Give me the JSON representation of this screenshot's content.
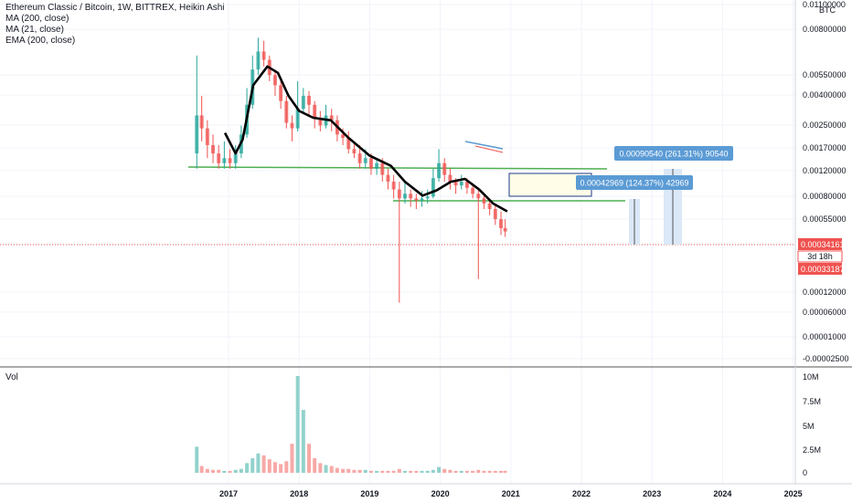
{
  "legend": {
    "title": "Ethereum Classic / Bitcoin, 1W, BITTREX, Heikin Ashi",
    "indicators": [
      "MA (200, close)",
      "MA (21, close)",
      "EMA (200, close)"
    ]
  },
  "volume_label": "Vol",
  "currency": "BTC",
  "current_price": "0.00034161",
  "countdown": "3d 18h",
  "secondary_price": "0.00033187",
  "measures": [
    {
      "text": "0.00090540 (261.31%) 90540"
    },
    {
      "text": "0.00042969 (124.37%) 42969"
    }
  ],
  "colors": {
    "up": "#26a69a",
    "down": "#ef5350",
    "ma": "#000000",
    "trendline": "#4caf50",
    "measure": "#5b9bd5",
    "price_tag": "#ef5350"
  },
  "chart_data": {
    "type": "candlestick",
    "y_scale": "log",
    "price_ticks": [
      "0.01100000",
      "0.00800000",
      "0.00550000",
      "0.00400000",
      "0.00250000",
      "0.00170000",
      "0.00120000",
      "0.00080000",
      "0.00055000",
      "0.00034161",
      "0.00012000",
      "0.00006000",
      "0.00001000",
      "-0.00002500"
    ],
    "x_ticks": [
      "2017",
      "2018",
      "2019",
      "2020",
      "2021",
      "2022",
      "2023",
      "2024",
      "2025"
    ],
    "volume_ticks": [
      "10M",
      "7.5M",
      "5M",
      "2.5M",
      "0"
    ],
    "series_ma": [
      [
        2016.95,
        0.00185
      ],
      [
        2017.1,
        0.0013
      ],
      [
        2017.2,
        0.00165
      ],
      [
        2017.35,
        0.0042
      ],
      [
        2017.55,
        0.0058
      ],
      [
        2017.7,
        0.0052
      ],
      [
        2017.85,
        0.0035
      ],
      [
        2018.0,
        0.0027
      ],
      [
        2018.2,
        0.0024
      ],
      [
        2018.45,
        0.0023
      ],
      [
        2018.7,
        0.0017
      ],
      [
        2019.0,
        0.00125
      ],
      [
        2019.3,
        0.00105
      ],
      [
        2019.5,
        0.0008
      ],
      [
        2019.75,
        0.00063
      ],
      [
        2019.95,
        0.00069
      ],
      [
        2020.15,
        0.0008
      ],
      [
        2020.35,
        0.00084
      ],
      [
        2020.55,
        0.0007
      ],
      [
        2020.75,
        0.00055
      ],
      [
        2020.95,
        0.00048
      ]
    ],
    "candles": [
      [
        2016.55,
        0.0013,
        0.0025,
        0.001,
        0.007
      ],
      [
        2016.62,
        0.0025,
        0.002,
        0.0016,
        0.0035
      ],
      [
        2016.7,
        0.002,
        0.0015,
        0.0012,
        0.0023
      ],
      [
        2016.78,
        0.0015,
        0.0013,
        0.0011,
        0.0018
      ],
      [
        2016.86,
        0.0013,
        0.0011,
        0.001,
        0.0015
      ],
      [
        2016.94,
        0.0011,
        0.0012,
        0.001,
        0.0016
      ],
      [
        2017.02,
        0.0012,
        0.0011,
        0.001,
        0.0014
      ],
      [
        2017.1,
        0.0011,
        0.0013,
        0.001,
        0.0015
      ],
      [
        2017.18,
        0.0013,
        0.0018,
        0.0012,
        0.0021
      ],
      [
        2017.26,
        0.0018,
        0.003,
        0.0017,
        0.004
      ],
      [
        2017.34,
        0.003,
        0.0055,
        0.0028,
        0.007
      ],
      [
        2017.42,
        0.0055,
        0.0075,
        0.005,
        0.0095
      ],
      [
        2017.5,
        0.0075,
        0.0065,
        0.0058,
        0.009
      ],
      [
        2017.58,
        0.0065,
        0.005,
        0.0045,
        0.007
      ],
      [
        2017.66,
        0.005,
        0.0042,
        0.0035,
        0.0055
      ],
      [
        2017.74,
        0.0042,
        0.0032,
        0.0028,
        0.0046
      ],
      [
        2017.82,
        0.0032,
        0.0022,
        0.002,
        0.0035
      ],
      [
        2017.9,
        0.0022,
        0.002,
        0.0016,
        0.0025
      ],
      [
        2017.98,
        0.002,
        0.0028,
        0.0019,
        0.0045
      ],
      [
        2018.06,
        0.0028,
        0.0035,
        0.0026,
        0.004
      ],
      [
        2018.14,
        0.0035,
        0.003,
        0.0025,
        0.0038
      ],
      [
        2018.22,
        0.003,
        0.0024,
        0.002,
        0.0032
      ],
      [
        2018.3,
        0.0024,
        0.0021,
        0.0019,
        0.0027
      ],
      [
        2018.38,
        0.0021,
        0.0025,
        0.002,
        0.003
      ],
      [
        2018.46,
        0.0025,
        0.0023,
        0.0019,
        0.0028
      ],
      [
        2018.54,
        0.0023,
        0.0018,
        0.0016,
        0.0025
      ],
      [
        2018.62,
        0.0018,
        0.0017,
        0.0015,
        0.002
      ],
      [
        2018.7,
        0.0017,
        0.0014,
        0.0013,
        0.0019
      ],
      [
        2018.78,
        0.0014,
        0.0013,
        0.0012,
        0.0016
      ],
      [
        2018.86,
        0.0013,
        0.0011,
        0.001,
        0.0015
      ],
      [
        2018.94,
        0.0011,
        0.0012,
        0.001,
        0.0014
      ],
      [
        2019.02,
        0.0012,
        0.001,
        0.0009,
        0.0013
      ],
      [
        2019.1,
        0.001,
        0.0011,
        0.0009,
        0.0012
      ],
      [
        2019.18,
        0.0011,
        0.0009,
        0.0008,
        0.0012
      ],
      [
        2019.26,
        0.0009,
        0.0008,
        0.0007,
        0.001
      ],
      [
        2019.34,
        0.0008,
        0.0007,
        0.0006,
        0.0009
      ],
      [
        2019.42,
        0.0007,
        0.0006,
        0.0001,
        0.0008
      ],
      [
        2019.5,
        0.0006,
        0.00065,
        0.00055,
        0.0008
      ],
      [
        2019.58,
        0.00065,
        0.0006,
        0.00052,
        0.0007
      ],
      [
        2019.66,
        0.0006,
        0.00058,
        0.0005,
        0.00065
      ],
      [
        2019.74,
        0.00058,
        0.0006,
        0.00052,
        0.00068
      ],
      [
        2019.82,
        0.0006,
        0.00062,
        0.00055,
        0.0007
      ],
      [
        2019.9,
        0.00062,
        0.00085,
        0.0006,
        0.001
      ],
      [
        2019.98,
        0.00085,
        0.0011,
        0.0008,
        0.0014
      ],
      [
        2020.06,
        0.0011,
        0.0009,
        0.0008,
        0.0012
      ],
      [
        2020.14,
        0.0009,
        0.0008,
        0.0007,
        0.001
      ],
      [
        2020.22,
        0.0008,
        0.00075,
        0.00065,
        0.00085
      ],
      [
        2020.3,
        0.00075,
        0.0008,
        0.0007,
        0.0009
      ],
      [
        2020.38,
        0.0008,
        0.00072,
        0.00065,
        0.00085
      ],
      [
        2020.46,
        0.00072,
        0.00065,
        0.0006,
        0.00078
      ],
      [
        2020.54,
        0.00065,
        0.0006,
        0.00015,
        0.0007
      ],
      [
        2020.62,
        0.0006,
        0.00055,
        0.0005,
        0.00065
      ],
      [
        2020.7,
        0.00055,
        0.0005,
        0.00045,
        0.0006
      ],
      [
        2020.78,
        0.0005,
        0.00042,
        0.00038,
        0.00055
      ],
      [
        2020.86,
        0.00042,
        0.00036,
        0.00032,
        0.00048
      ],
      [
        2020.92,
        0.00036,
        0.00034,
        0.00031,
        0.00042
      ]
    ],
    "volumes": [
      [
        2016.55,
        2.7
      ],
      [
        2016.62,
        0.7
      ],
      [
        2016.7,
        0.4
      ],
      [
        2016.78,
        0.3
      ],
      [
        2016.86,
        0.3
      ],
      [
        2016.94,
        0.2
      ],
      [
        2017.02,
        0.2
      ],
      [
        2017.1,
        0.3
      ],
      [
        2017.18,
        0.4
      ],
      [
        2017.26,
        1.0
      ],
      [
        2017.34,
        1.5
      ],
      [
        2017.42,
        2.0
      ],
      [
        2017.5,
        1.8
      ],
      [
        2017.58,
        1.4
      ],
      [
        2017.66,
        1.1
      ],
      [
        2017.74,
        0.9
      ],
      [
        2017.82,
        1.2
      ],
      [
        2017.9,
        3.0
      ],
      [
        2017.98,
        10.0
      ],
      [
        2018.06,
        6.5
      ],
      [
        2018.14,
        3.0
      ],
      [
        2018.22,
        1.5
      ],
      [
        2018.3,
        1.0
      ],
      [
        2018.38,
        0.8
      ],
      [
        2018.46,
        0.7
      ],
      [
        2018.54,
        0.5
      ],
      [
        2018.62,
        0.4
      ],
      [
        2018.7,
        0.4
      ],
      [
        2018.78,
        0.3
      ],
      [
        2018.86,
        0.3
      ],
      [
        2018.94,
        0.3
      ],
      [
        2019.02,
        0.2
      ],
      [
        2019.1,
        0.2
      ],
      [
        2019.18,
        0.2
      ],
      [
        2019.26,
        0.2
      ],
      [
        2019.34,
        0.2
      ],
      [
        2019.42,
        0.4
      ],
      [
        2019.5,
        0.2
      ],
      [
        2019.58,
        0.2
      ],
      [
        2019.66,
        0.2
      ],
      [
        2019.74,
        0.2
      ],
      [
        2019.82,
        0.2
      ],
      [
        2019.9,
        0.3
      ],
      [
        2019.98,
        0.6
      ],
      [
        2020.06,
        0.4
      ],
      [
        2020.14,
        0.3
      ],
      [
        2020.22,
        0.2
      ],
      [
        2020.3,
        0.2
      ],
      [
        2020.38,
        0.2
      ],
      [
        2020.46,
        0.2
      ],
      [
        2020.54,
        0.3
      ],
      [
        2020.62,
        0.2
      ],
      [
        2020.7,
        0.2
      ],
      [
        2020.78,
        0.2
      ],
      [
        2020.86,
        0.2
      ],
      [
        2020.92,
        0.2
      ]
    ]
  }
}
